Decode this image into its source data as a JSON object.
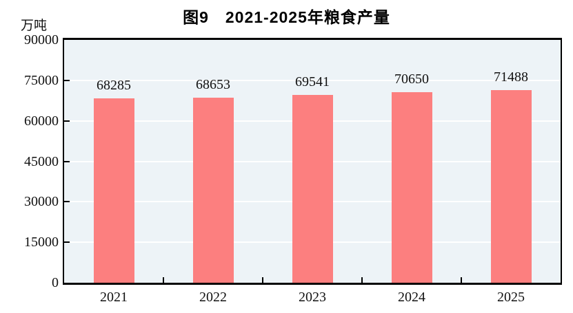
{
  "chart_data": {
    "type": "bar",
    "title": "图9　2021-2025年粮食产量",
    "unit_label": "万吨",
    "categories": [
      "2021",
      "2022",
      "2023",
      "2024",
      "2025"
    ],
    "values": [
      68285,
      68653,
      69541,
      70650,
      71488
    ],
    "value_labels": [
      "68285",
      "68653",
      "69541",
      "70650",
      "71488"
    ],
    "xlabel": "",
    "ylabel": "万吨",
    "ylim": [
      0,
      90000
    ],
    "y_ticks": [
      0,
      15000,
      30000,
      45000,
      60000,
      75000,
      90000
    ],
    "grid": true,
    "legend": false,
    "colors": {
      "bar": "#FC7F7F",
      "plot_background": "#EDF3F7",
      "gridline": "#FFFFFF",
      "axis": "#000000",
      "text": "#111111"
    }
  }
}
